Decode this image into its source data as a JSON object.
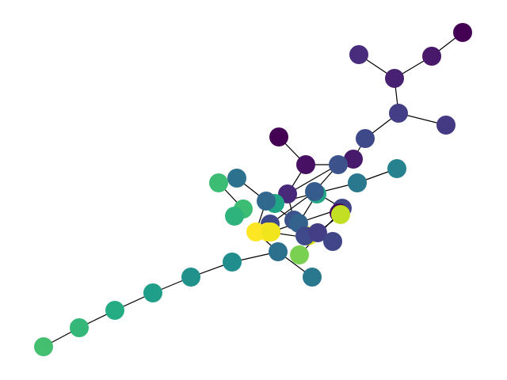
{
  "graph": {
    "edge_color": "#000000",
    "node_count": 47,
    "colormap": "viridis"
  }
}
